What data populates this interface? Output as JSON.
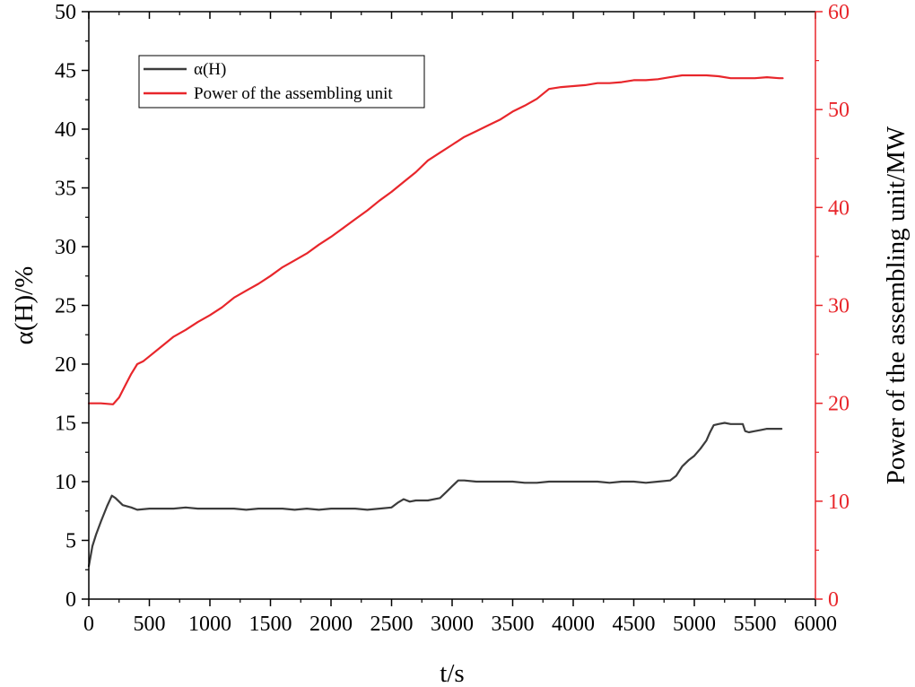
{
  "chart_data": {
    "type": "line",
    "xlabel": "t/s",
    "ylabel_left": "α(H)/%",
    "ylabel_right": "Power of the assembling unit/MW",
    "xlim": [
      0,
      6000
    ],
    "ylim_left": [
      0,
      50
    ],
    "ylim_right": [
      0,
      60
    ],
    "x_ticks": [
      0,
      500,
      1000,
      1500,
      2000,
      2500,
      3000,
      3500,
      4000,
      4500,
      5000,
      5500,
      6000
    ],
    "y_left_ticks": [
      0,
      5,
      10,
      15,
      20,
      25,
      30,
      35,
      40,
      45,
      50
    ],
    "y_right_ticks": [
      0,
      10,
      20,
      30,
      40,
      50,
      60
    ],
    "grid": false,
    "legend_position": "top-left",
    "colors": {
      "left_axis": "#000000",
      "right_axis": "#e8262b"
    },
    "series": [
      {
        "name": "α(H)",
        "axis": "left",
        "color": "#3c3c3c",
        "x": [
          0,
          30,
          60,
          100,
          150,
          190,
          220,
          280,
          350,
          400,
          500,
          600,
          700,
          800,
          900,
          1000,
          1100,
          1200,
          1300,
          1400,
          1500,
          1600,
          1700,
          1800,
          1900,
          2000,
          2100,
          2200,
          2300,
          2400,
          2500,
          2550,
          2600,
          2650,
          2700,
          2800,
          2900,
          2950,
          3000,
          3050,
          3100,
          3200,
          3300,
          3400,
          3500,
          3600,
          3700,
          3800,
          3900,
          4000,
          4100,
          4200,
          4300,
          4400,
          4500,
          4600,
          4700,
          4800,
          4850,
          4900,
          4950,
          5000,
          5050,
          5100,
          5130,
          5160,
          5200,
          5250,
          5300,
          5350,
          5400,
          5420,
          5450,
          5500,
          5550,
          5600,
          5650,
          5700,
          5720
        ],
        "y": [
          2.8,
          4.5,
          5.5,
          6.6,
          7.9,
          8.8,
          8.6,
          8.0,
          7.8,
          7.6,
          7.7,
          7.7,
          7.7,
          7.8,
          7.7,
          7.7,
          7.7,
          7.7,
          7.6,
          7.7,
          7.7,
          7.7,
          7.6,
          7.7,
          7.6,
          7.7,
          7.7,
          7.7,
          7.6,
          7.7,
          7.8,
          8.2,
          8.5,
          8.3,
          8.4,
          8.4,
          8.6,
          9.1,
          9.6,
          10.1,
          10.1,
          10.0,
          10.0,
          10.0,
          10.0,
          9.9,
          9.9,
          10.0,
          10.0,
          10.0,
          10.0,
          10.0,
          9.9,
          10.0,
          10.0,
          9.9,
          10.0,
          10.1,
          10.5,
          11.3,
          11.8,
          12.2,
          12.8,
          13.5,
          14.2,
          14.8,
          14.9,
          15.0,
          14.9,
          14.9,
          14.9,
          14.3,
          14.2,
          14.3,
          14.4,
          14.5,
          14.5,
          14.5,
          14.5
        ]
      },
      {
        "name": "Power of the assembling unit",
        "axis": "right",
        "color": "#e8262b",
        "x": [
          0,
          100,
          200,
          250,
          300,
          350,
          400,
          450,
          500,
          600,
          700,
          800,
          900,
          1000,
          1100,
          1200,
          1300,
          1400,
          1500,
          1600,
          1700,
          1800,
          1900,
          2000,
          2100,
          2200,
          2300,
          2400,
          2500,
          2600,
          2700,
          2800,
          2900,
          3000,
          3100,
          3200,
          3300,
          3400,
          3500,
          3600,
          3700,
          3800,
          3900,
          4000,
          4100,
          4200,
          4300,
          4400,
          4500,
          4600,
          4700,
          4800,
          4900,
          5000,
          5100,
          5200,
          5300,
          5400,
          5500,
          5600,
          5700,
          5730
        ],
        "y": [
          20.0,
          20.0,
          19.9,
          20.6,
          21.8,
          23.0,
          24.0,
          24.3,
          24.8,
          25.8,
          26.8,
          27.5,
          28.3,
          29.0,
          29.8,
          30.8,
          31.5,
          32.2,
          33.0,
          33.9,
          34.6,
          35.3,
          36.2,
          37.0,
          37.9,
          38.8,
          39.7,
          40.7,
          41.6,
          42.6,
          43.6,
          44.8,
          45.6,
          46.4,
          47.2,
          47.8,
          48.4,
          49.0,
          49.8,
          50.4,
          51.1,
          52.1,
          52.3,
          52.4,
          52.5,
          52.7,
          52.7,
          52.8,
          53.0,
          53.0,
          53.1,
          53.3,
          53.5,
          53.5,
          53.5,
          53.4,
          53.2,
          53.2,
          53.2,
          53.3,
          53.2,
          53.2
        ]
      }
    ]
  }
}
